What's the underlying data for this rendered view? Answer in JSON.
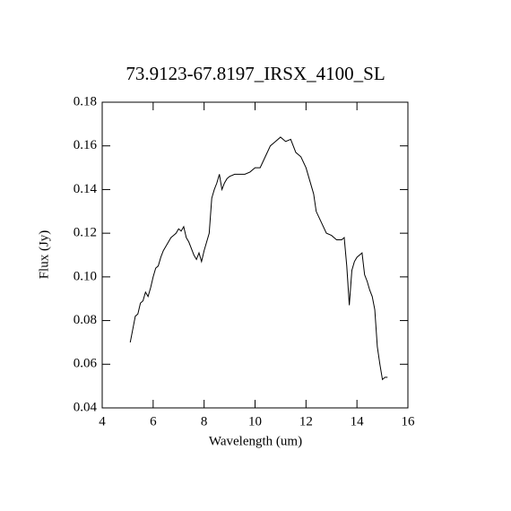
{
  "chart_data": {
    "type": "line",
    "title": "73.9123-67.8197_IRSX_4100_SL",
    "x_label": "Wavelength (um)",
    "y_label": "Flux (Jy)",
    "x": [
      5.1,
      5.2,
      5.3,
      5.4,
      5.5,
      5.6,
      5.7,
      5.8,
      5.9,
      6.0,
      6.1,
      6.2,
      6.3,
      6.4,
      6.5,
      6.6,
      6.7,
      6.8,
      6.9,
      7.0,
      7.1,
      7.2,
      7.3,
      7.4,
      7.5,
      7.6,
      7.7,
      7.8,
      7.9,
      8.0,
      8.1,
      8.2,
      8.3,
      8.4,
      8.5,
      8.6,
      8.7,
      8.8,
      8.9,
      9.0,
      9.2,
      9.4,
      9.6,
      9.8,
      10.0,
      10.2,
      10.4,
      10.6,
      10.8,
      11.0,
      11.2,
      11.4,
      11.6,
      11.8,
      12.0,
      12.2,
      12.3,
      12.4,
      12.6,
      12.8,
      13.0,
      13.2,
      13.4,
      13.5,
      13.6,
      13.7,
      13.8,
      13.9,
      14.0,
      14.2,
      14.3,
      14.4,
      14.5,
      14.6,
      14.7,
      14.8,
      14.9,
      15.0,
      15.1,
      15.2
    ],
    "values": [
      0.07,
      0.076,
      0.082,
      0.083,
      0.088,
      0.089,
      0.093,
      0.091,
      0.095,
      0.1,
      0.104,
      0.105,
      0.109,
      0.112,
      0.114,
      0.116,
      0.118,
      0.119,
      0.12,
      0.122,
      0.121,
      0.123,
      0.118,
      0.116,
      0.113,
      0.11,
      0.108,
      0.111,
      0.107,
      0.112,
      0.116,
      0.12,
      0.136,
      0.14,
      0.143,
      0.147,
      0.14,
      0.143,
      0.145,
      0.146,
      0.147,
      0.147,
      0.147,
      0.148,
      0.15,
      0.15,
      0.155,
      0.16,
      0.162,
      0.164,
      0.162,
      0.163,
      0.157,
      0.155,
      0.15,
      0.142,
      0.138,
      0.13,
      0.125,
      0.12,
      0.119,
      0.117,
      0.117,
      0.118,
      0.105,
      0.087,
      0.103,
      0.107,
      0.109,
      0.111,
      0.101,
      0.098,
      0.094,
      0.091,
      0.085,
      0.068,
      0.06,
      0.053,
      0.054,
      0.054
    ],
    "color": "#000000",
    "xlim": [
      4,
      16
    ],
    "xticks": [
      4,
      6,
      8,
      10,
      12,
      14,
      16
    ],
    "ylim": [
      0.04,
      0.18
    ],
    "yticks": [
      0.04,
      0.06,
      0.08,
      {
        "value": 0.1,
        "label": "0.10"
      },
      0.12,
      0.14,
      0.16,
      0.18
    ]
  }
}
